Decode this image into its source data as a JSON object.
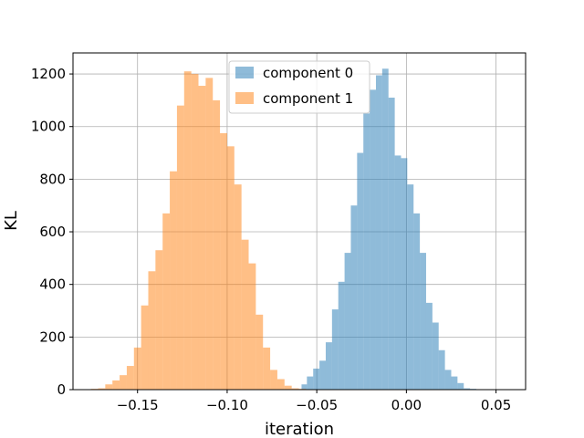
{
  "chart_data": {
    "type": "bar",
    "xlabel": "iteration",
    "ylabel": "KL",
    "xlim": [
      -0.186,
      0.0665
    ],
    "ylim": [
      0,
      1280
    ],
    "xticks": [
      -0.15,
      -0.1,
      -0.05,
      0.0,
      0.05
    ],
    "xtick_labels": [
      "−0.15",
      "−0.10",
      "−0.05",
      "0.00",
      "0.05"
    ],
    "yticks": [
      0,
      200,
      400,
      600,
      800,
      1000,
      1200
    ],
    "ytick_labels": [
      "0",
      "200",
      "400",
      "600",
      "800",
      "1000",
      "1200"
    ],
    "grid": true,
    "legend_position": "top-center",
    "series": [
      {
        "name": "component 0",
        "color": "#1f77b4",
        "alpha": 0.5,
        "bins": [
          [
            -0.0585,
            -0.0555,
            20
          ],
          [
            -0.0555,
            -0.052,
            50
          ],
          [
            -0.052,
            -0.0485,
            80
          ],
          [
            -0.0485,
            -0.045,
            110
          ],
          [
            -0.045,
            -0.0415,
            180
          ],
          [
            -0.0415,
            -0.038,
            305
          ],
          [
            -0.038,
            -0.0345,
            410
          ],
          [
            -0.0345,
            -0.031,
            520
          ],
          [
            -0.031,
            -0.0275,
            700
          ],
          [
            -0.0275,
            -0.024,
            900
          ],
          [
            -0.024,
            -0.0205,
            1050
          ],
          [
            -0.0205,
            -0.017,
            1140
          ],
          [
            -0.017,
            -0.0135,
            1195
          ],
          [
            -0.0135,
            -0.01,
            1220
          ],
          [
            -0.01,
            -0.0065,
            1110
          ],
          [
            -0.0065,
            -0.003,
            890
          ],
          [
            -0.003,
            0.0005,
            880
          ],
          [
            0.0005,
            0.004,
            780
          ],
          [
            0.004,
            0.0075,
            670
          ],
          [
            0.0075,
            0.011,
            520
          ],
          [
            0.011,
            0.0145,
            330
          ],
          [
            0.0145,
            0.018,
            255
          ],
          [
            0.018,
            0.0215,
            150
          ],
          [
            0.0215,
            0.025,
            75
          ],
          [
            0.025,
            0.0285,
            50
          ],
          [
            0.0285,
            0.032,
            25
          ],
          [
            0.032,
            0.0355,
            5
          ],
          [
            0.0355,
            0.039,
            3
          ],
          [
            0.039,
            0.0425,
            1
          ]
        ]
      },
      {
        "name": "component 1",
        "color": "#ff7f0e",
        "alpha": 0.5,
        "bins": [
          [
            -0.176,
            -0.172,
            3
          ],
          [
            -0.172,
            -0.168,
            5
          ],
          [
            -0.168,
            -0.164,
            20
          ],
          [
            -0.164,
            -0.16,
            35
          ],
          [
            -0.16,
            -0.156,
            55
          ],
          [
            -0.156,
            -0.152,
            90
          ],
          [
            -0.152,
            -0.148,
            160
          ],
          [
            -0.148,
            -0.144,
            320
          ],
          [
            -0.144,
            -0.14,
            450
          ],
          [
            -0.14,
            -0.136,
            530
          ],
          [
            -0.136,
            -0.132,
            670
          ],
          [
            -0.132,
            -0.128,
            830
          ],
          [
            -0.128,
            -0.124,
            1080
          ],
          [
            -0.124,
            -0.12,
            1210
          ],
          [
            -0.12,
            -0.116,
            1200
          ],
          [
            -0.116,
            -0.112,
            1155
          ],
          [
            -0.112,
            -0.108,
            1185
          ],
          [
            -0.108,
            -0.104,
            1100
          ],
          [
            -0.104,
            -0.1,
            975
          ],
          [
            -0.1,
            -0.096,
            925
          ],
          [
            -0.096,
            -0.092,
            780
          ],
          [
            -0.092,
            -0.088,
            570
          ],
          [
            -0.088,
            -0.084,
            480
          ],
          [
            -0.084,
            -0.08,
            285
          ],
          [
            -0.08,
            -0.076,
            160
          ],
          [
            -0.076,
            -0.072,
            75
          ],
          [
            -0.072,
            -0.068,
            40
          ],
          [
            -0.068,
            -0.064,
            15
          ],
          [
            -0.064,
            -0.06,
            5
          ],
          [
            -0.06,
            -0.056,
            3
          ]
        ]
      }
    ]
  }
}
